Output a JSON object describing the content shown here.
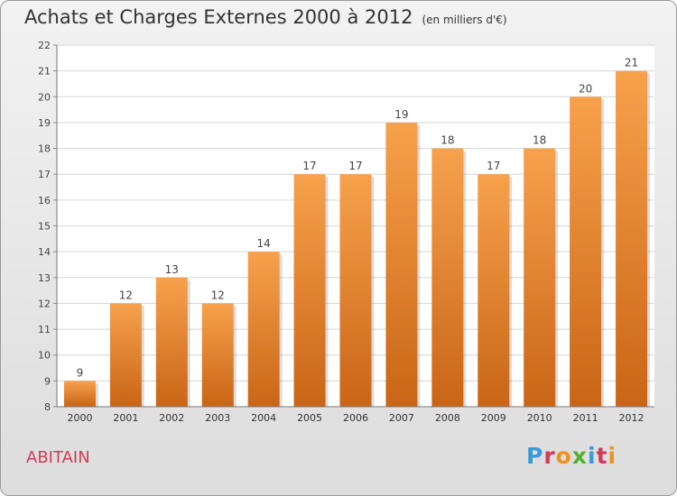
{
  "header": {
    "title": "Achats et Charges Externes 2000 à 2012",
    "subtitle": "(en milliers d'€)"
  },
  "footer": {
    "commune": "ABITAIN",
    "logo_text": "Proxiti"
  },
  "colors": {
    "bar_top": "#f7a14d",
    "bar_bottom": "#c96516",
    "commune_text": "#d23a5a",
    "logo_letters": [
      "#3a9ad9",
      "#d23a5a",
      "#f09020",
      "#55b030",
      "#3a9ad9",
      "#d23a5a",
      "#f09020"
    ]
  },
  "chart_data": {
    "type": "bar",
    "categories": [
      "2000",
      "2001",
      "2002",
      "2003",
      "2004",
      "2005",
      "2006",
      "2007",
      "2008",
      "2009",
      "2010",
      "2011",
      "2012"
    ],
    "values": [
      9,
      12,
      13,
      12,
      14,
      17,
      17,
      19,
      18,
      17,
      18,
      20,
      21
    ],
    "ylim": [
      8,
      22
    ],
    "yticks": [
      8,
      9,
      10,
      11,
      12,
      13,
      14,
      15,
      16,
      17,
      18,
      19,
      20,
      21,
      22
    ],
    "grid": true,
    "data_labels": true
  }
}
